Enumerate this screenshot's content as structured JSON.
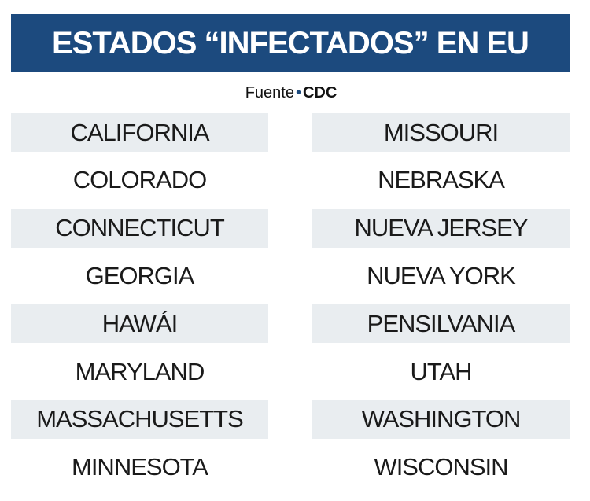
{
  "header": {
    "title": "ESTADOS “INFECTADOS” EN EU"
  },
  "source": {
    "label": "Fuente",
    "name": "CDC"
  },
  "table": {
    "rows": [
      [
        "CALIFORNIA",
        "MISSOURI"
      ],
      [
        "COLORADO",
        "NEBRASKA"
      ],
      [
        "CONNECTICUT",
        "NUEVA JERSEY"
      ],
      [
        "GEORGIA",
        "NUEVA YORK"
      ],
      [
        "HAWÁI",
        "PENSILVANIA"
      ],
      [
        "MARYLAND",
        "UTAH"
      ],
      [
        "MASSACHUSETTS",
        "WASHINGTON"
      ],
      [
        "MINNESOTA",
        "WISCONSIN"
      ]
    ]
  }
}
